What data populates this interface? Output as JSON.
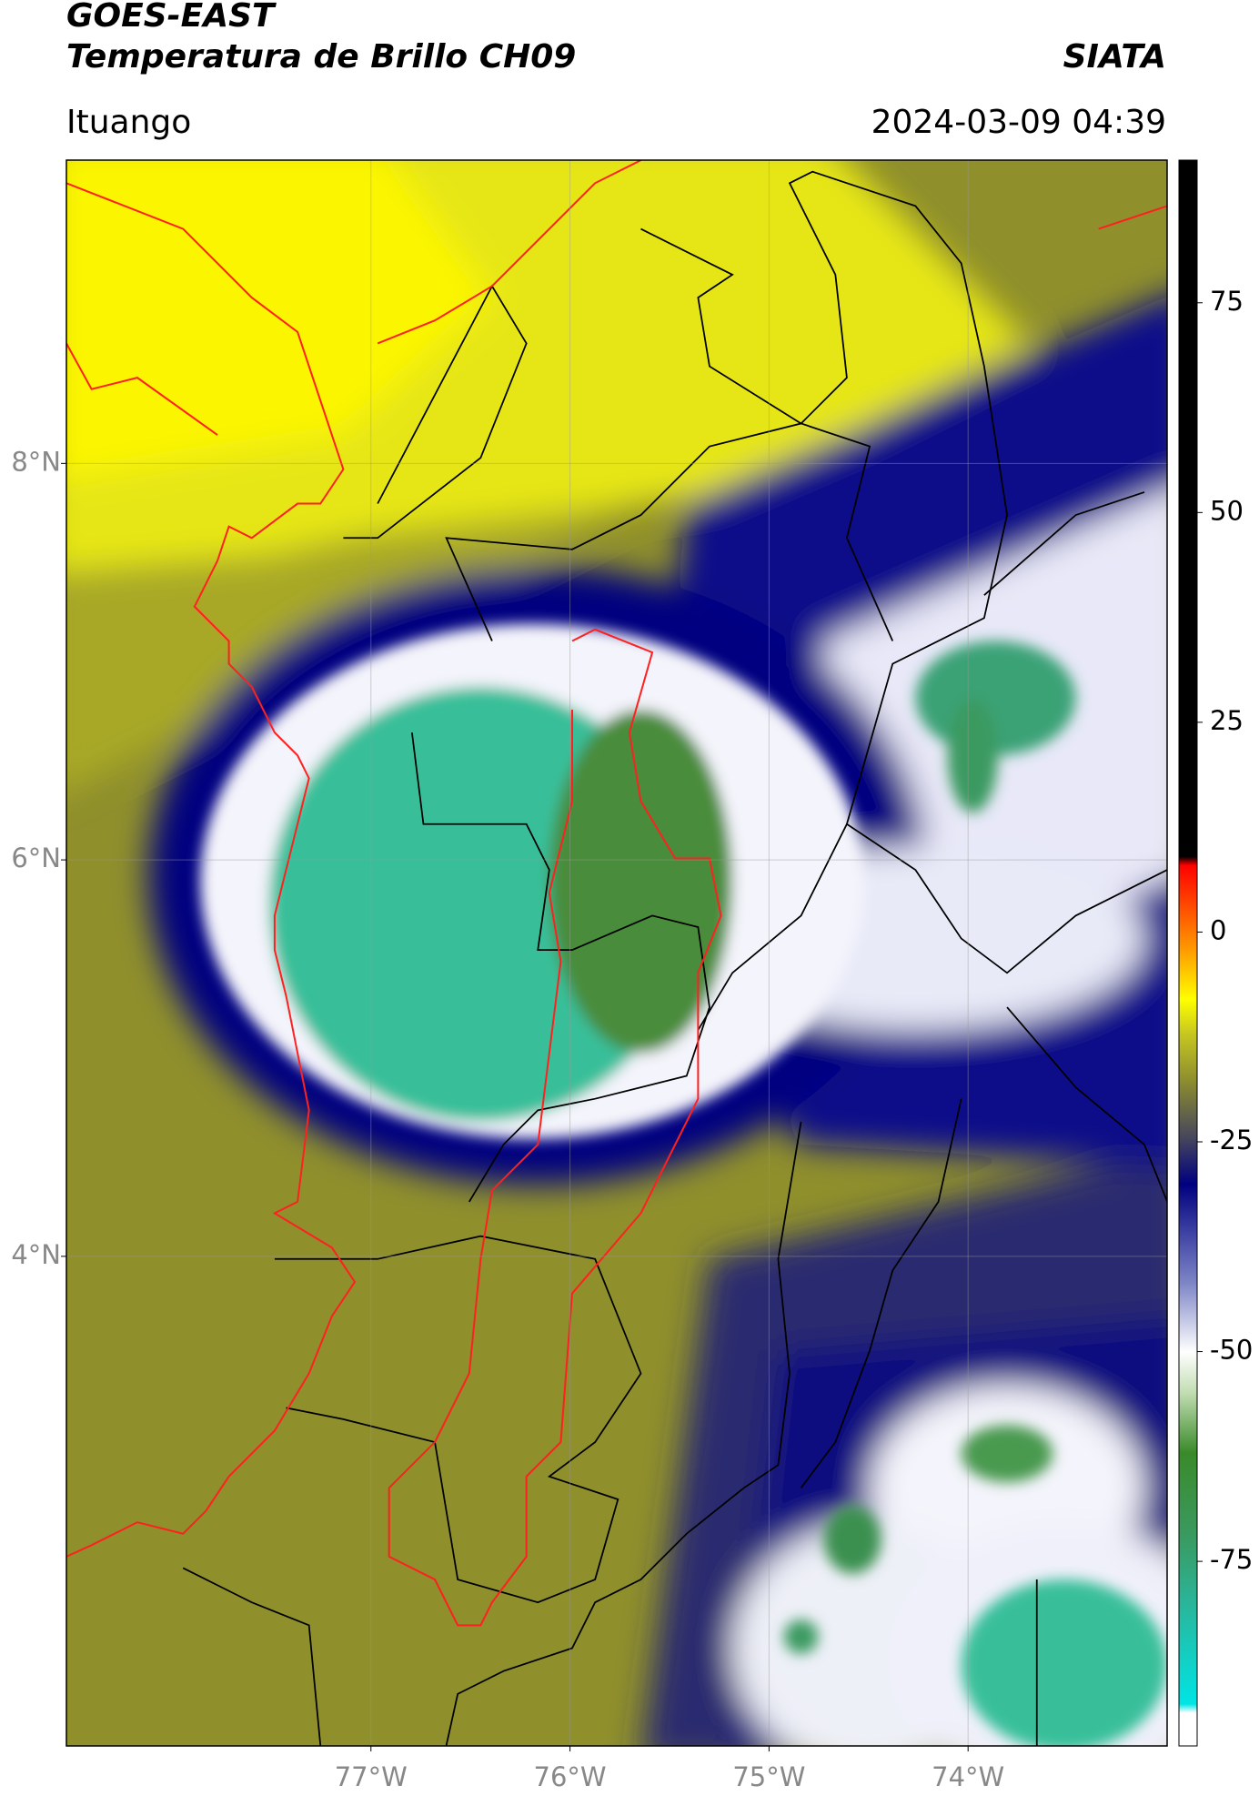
{
  "chart_data": {
    "type": "map",
    "title": "GOES-EAST",
    "subtitle": "Temperatura de Brillo CH09",
    "source": "SIATA",
    "location": "Ituango",
    "datetime": "2024-03-09 04:39",
    "xlim": [
      -78.53,
      -73.0
    ],
    "ylim": [
      1.53,
      9.53
    ],
    "xticks": [
      {
        "value": -77,
        "label": "77°W"
      },
      {
        "value": -76,
        "label": "76°W"
      },
      {
        "value": -75,
        "label": "75°W"
      },
      {
        "value": -74,
        "label": "74°W"
      }
    ],
    "yticks": [
      {
        "value": 8,
        "label": "8°N"
      },
      {
        "value": 6,
        "label": "6°N"
      },
      {
        "value": 4,
        "label": "4°N"
      }
    ],
    "grid": true,
    "colorbar": {
      "lim": [
        -97,
        92
      ],
      "ticks": [
        75,
        50,
        25,
        0,
        -25,
        -50,
        -75
      ],
      "stops": [
        {
          "value": -97,
          "color": "#ffffff"
        },
        {
          "value": -93,
          "color": "#ffffff"
        },
        {
          "value": -92,
          "color": "#00e5e5"
        },
        {
          "value": -80,
          "color": "#2ab59a"
        },
        {
          "value": -72,
          "color": "#3a9a60"
        },
        {
          "value": -62,
          "color": "#3a8a2a"
        },
        {
          "value": -55,
          "color": "#c0dcb0"
        },
        {
          "value": -50,
          "color": "#ffffff"
        },
        {
          "value": -42,
          "color": "#8088c8"
        },
        {
          "value": -30,
          "color": "#000080"
        },
        {
          "value": -25,
          "color": "#404060"
        },
        {
          "value": -18,
          "color": "#8a8a30"
        },
        {
          "value": -12,
          "color": "#c8c820"
        },
        {
          "value": -8,
          "color": "#ffff00"
        },
        {
          "value": -2,
          "color": "#ff9900"
        },
        {
          "value": 8,
          "color": "#ff0000"
        },
        {
          "value": 9,
          "color": "#000000"
        },
        {
          "value": 92,
          "color": "#000000"
        }
      ]
    }
  }
}
